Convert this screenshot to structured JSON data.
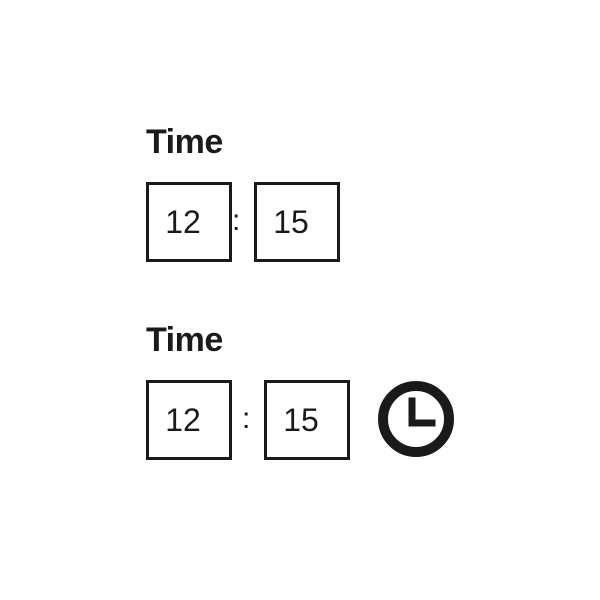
{
  "fields": [
    {
      "label": "Time",
      "hours": "12",
      "separator": ":",
      "minutes": "15",
      "has_clock_button": false
    },
    {
      "label": "Time",
      "hours": "12",
      "separator": ":",
      "minutes": "15",
      "has_clock_button": true,
      "clock_icon": "clock-icon"
    }
  ],
  "colors": {
    "text": "#1a1a1a",
    "border": "#1a1a1a",
    "background": "#ffffff"
  }
}
